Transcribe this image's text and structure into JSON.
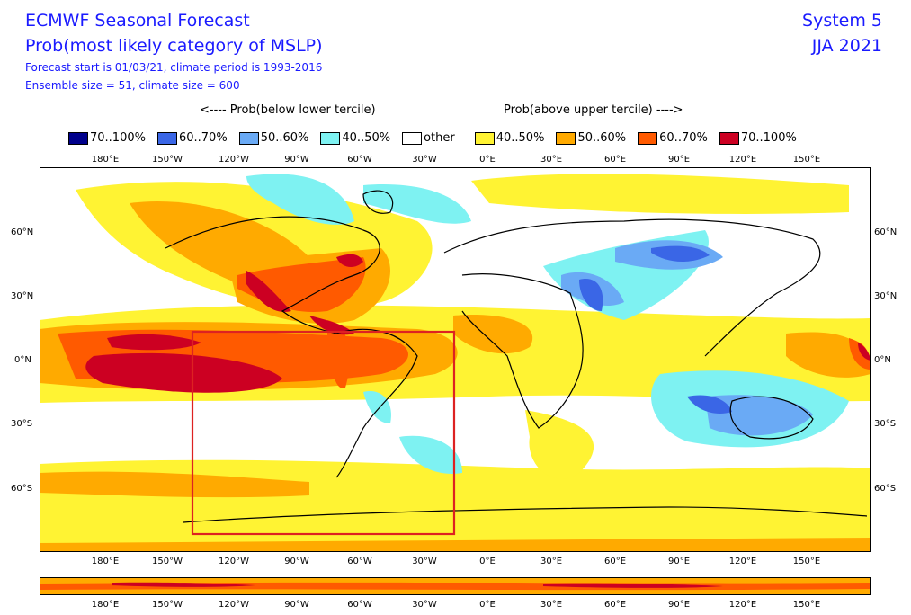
{
  "header": {
    "title": "ECMWF Seasonal Forecast",
    "subtitle": "Prob(most likely category of MSLP)",
    "line3": "Forecast start is 01/03/21, climate period is 1993-2016",
    "line4": "Ensemble size = 51, climate size = 600",
    "system": "System 5",
    "period": "JJA 2021"
  },
  "legend": {
    "below_label": "<---- Prob(below lower tercile)",
    "above_label": "Prob(above upper tercile) ---->",
    "items": [
      {
        "label": "70..100%",
        "color": "#00008b"
      },
      {
        "label": "60..70%",
        "color": "#3a66e6"
      },
      {
        "label": "50..60%",
        "color": "#6aaaf5"
      },
      {
        "label": "40..50%",
        "color": "#7ef2f2"
      },
      {
        "label": "other",
        "color": "#ffffff"
      },
      {
        "label": "40..50%",
        "color": "#fff333"
      },
      {
        "label": "50..60%",
        "color": "#ffaa00"
      },
      {
        "label": "60..70%",
        "color": "#ff5a00"
      },
      {
        "label": "70..100%",
        "color": "#cc0022"
      }
    ]
  },
  "axes": {
    "lon_labels": [
      "180°E",
      "150°W",
      "120°W",
      "90°W",
      "60°W",
      "30°W",
      "0°E",
      "30°E",
      "60°E",
      "90°E",
      "120°E",
      "150°E"
    ],
    "lat_labels_left": [
      "60°N",
      "30°N",
      "0°N",
      "30°S",
      "60°S"
    ],
    "lat_labels_right": [
      "60°N",
      "30°N",
      "0°N",
      "30°S",
      "60°S"
    ]
  },
  "highlight_box": {
    "color": "#dd2222",
    "lon_range": [
      "140°W",
      "15°W"
    ],
    "lat_range": [
      "15°N",
      "80°S"
    ]
  }
}
